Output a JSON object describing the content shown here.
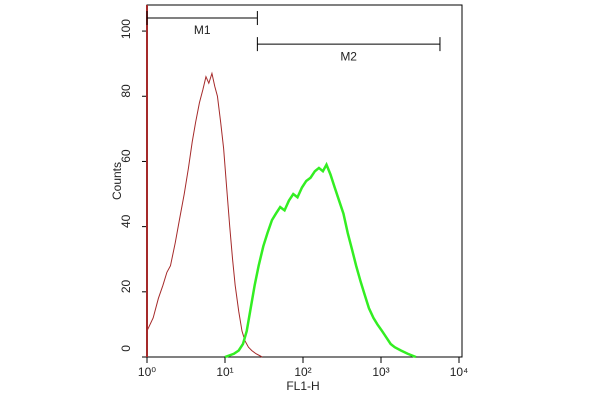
{
  "chart_data": {
    "type": "line",
    "x_label": "FL1-H",
    "y_label": "Counts",
    "xscale": "log",
    "xlim": [
      1,
      10000
    ],
    "ylim": [
      0,
      108
    ],
    "xticks": [
      {
        "value": 1,
        "label": "10⁰"
      },
      {
        "value": 10,
        "label": "10¹"
      },
      {
        "value": 100,
        "label": "10²"
      },
      {
        "value": 1000,
        "label": "10³"
      },
      {
        "value": 10000,
        "label": "10⁴"
      }
    ],
    "yticks": [
      0,
      20,
      40,
      60,
      80,
      100
    ],
    "series": [
      {
        "color": "#a52a2a",
        "x": [
          1,
          1.2,
          1.4,
          1.6,
          1.8,
          2,
          2.3,
          2.6,
          3,
          3.4,
          3.8,
          4.2,
          4.7,
          5.2,
          5.7,
          6.2,
          6.8,
          7.4,
          8,
          8.8,
          9.6,
          10.5,
          11.5,
          12.5,
          13.5,
          15,
          16.5,
          18,
          20,
          22,
          25,
          30
        ],
        "values": [
          8,
          12,
          18,
          22,
          26,
          28,
          35,
          42,
          50,
          58,
          66,
          72,
          78,
          82,
          86,
          84,
          87,
          83,
          80,
          72,
          64,
          52,
          40,
          30,
          22,
          14,
          8,
          5,
          3,
          2,
          1,
          0
        ]
      },
      {
        "color": "#33ee22",
        "x": [
          10,
          13,
          15,
          17,
          19,
          21,
          24,
          27,
          31,
          35,
          40,
          45,
          51,
          58,
          66,
          75,
          85,
          97,
          110,
          125,
          142,
          160,
          180,
          200,
          225,
          255,
          290,
          330,
          375,
          425,
          480,
          550,
          620,
          700,
          800,
          900,
          1030,
          1170,
          1330,
          1500,
          1800,
          2200,
          2800
        ],
        "values": [
          0,
          1,
          2,
          4,
          8,
          14,
          22,
          28,
          34,
          38,
          42,
          44,
          46,
          45,
          48,
          50,
          49,
          52,
          54,
          55,
          57,
          58,
          57,
          59,
          56,
          52,
          48,
          44,
          38,
          33,
          28,
          23,
          19,
          15,
          12,
          10,
          8,
          6,
          4,
          3,
          2,
          1,
          0
        ]
      }
    ],
    "markers": [
      {
        "label": "M1",
        "range": [
          1,
          26
        ],
        "level": 104
      },
      {
        "label": "M2",
        "range": [
          26,
          5700
        ],
        "level": 96
      }
    ]
  }
}
